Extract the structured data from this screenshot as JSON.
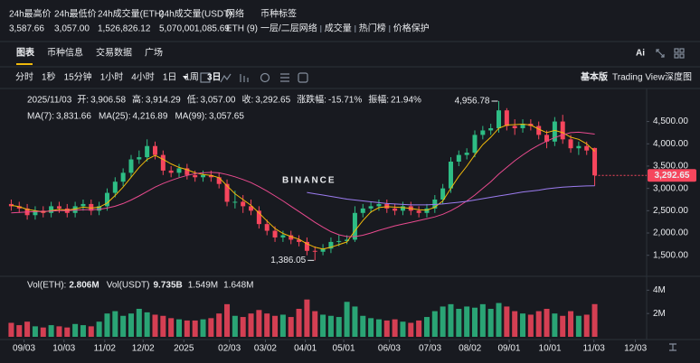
{
  "header": {
    "stats": [
      {
        "label": "24h最高价",
        "value": "3,587.66"
      },
      {
        "label": "24h最低价",
        "value": "3,057.00"
      },
      {
        "label": "24h成交量(ETH)",
        "value": "1,526,826.12"
      },
      {
        "label": "24h成交量(USDT)",
        "value": "5,070,001,085.69"
      },
      {
        "label": "网络",
        "value": "ETH (9)"
      }
    ],
    "tags_label": "币种标签",
    "tags": [
      "一层/二层网络",
      "成交量",
      "热门榜",
      "价格保护"
    ]
  },
  "tabs": [
    "图表",
    "币种信息",
    "交易数据",
    "广场"
  ],
  "tools_label": "Ai",
  "intervals": [
    "分时",
    "1秒",
    "15分钟",
    "1小时",
    "4小时",
    "1日",
    "1周",
    "3日"
  ],
  "views": [
    "基本版",
    "Trading View",
    "深度图"
  ],
  "chart_data": {
    "type": "candlestick",
    "watermark": "BINANCE",
    "info": {
      "date": "2025/11/03",
      "fields": [
        {
          "label": "开:",
          "value": "3,906.58"
        },
        {
          "label": "高:",
          "value": "3,914.29"
        },
        {
          "label": "低:",
          "value": "3,057.00"
        },
        {
          "label": "收:",
          "value": "3,292.65"
        },
        {
          "label": "涨跌幅:",
          "value": "-15.71%"
        },
        {
          "label": "振幅:",
          "value": "21.94%"
        }
      ]
    },
    "up_color": "#2ebd85",
    "down_color": "#f6465d",
    "open": [
      2650,
      2600,
      2550,
      2400,
      2500,
      2450,
      2600,
      2550,
      2450,
      2600,
      2650,
      2500,
      2600,
      2900,
      3150,
      3350,
      3650,
      3700,
      3950,
      3750,
      3400,
      3350,
      3450,
      3300,
      3250,
      3300,
      3250,
      3100,
      2700,
      2700,
      2600,
      2500,
      2200,
      2050,
      1900,
      1950,
      1850,
      1800,
      1600,
      1580,
      1650,
      1800,
      1820,
      1850,
      2450,
      2550,
      2600,
      2650,
      2550,
      2500,
      2600,
      2500,
      2450,
      2550,
      2750,
      3000,
      3600,
      3750,
      3800,
      4200,
      4300,
      4350,
      4750,
      4400,
      4350,
      4450,
      4400,
      4200,
      4050,
      4500,
      4100,
      3900,
      3950,
      3906.58
    ],
    "high": [
      2750,
      2700,
      2650,
      2600,
      2600,
      2700,
      2700,
      2650,
      2700,
      2750,
      2750,
      2700,
      3000,
      3250,
      3450,
      3750,
      3850,
      4100,
      4050,
      3850,
      3500,
      3550,
      3550,
      3400,
      3400,
      3400,
      3350,
      3200,
      2950,
      2850,
      2750,
      2600,
      2300,
      2150,
      2050,
      2050,
      1950,
      1900,
      1700,
      1750,
      1900,
      1950,
      1950,
      2600,
      2650,
      2700,
      2750,
      2750,
      2650,
      2700,
      2700,
      2600,
      2650,
      2850,
      3100,
      3700,
      3850,
      3900,
      4300,
      4400,
      4450,
      4956.78,
      4800,
      4550,
      4550,
      4550,
      4500,
      4300,
      4600,
      4650,
      4200,
      4050,
      4050,
      3914.29
    ],
    "low": [
      2500,
      2450,
      2300,
      2300,
      2350,
      2350,
      2450,
      2350,
      2350,
      2500,
      2400,
      2400,
      2500,
      2800,
      3050,
      3250,
      3550,
      3600,
      3650,
      3300,
      3250,
      3250,
      3200,
      3150,
      3150,
      3150,
      3000,
      2600,
      2550,
      2450,
      2400,
      2100,
      1950,
      1800,
      1800,
      1750,
      1700,
      1500,
      1386.05,
      1500,
      1550,
      1700,
      1750,
      1800,
      2350,
      2450,
      2500,
      2450,
      2400,
      2400,
      2400,
      2350,
      2350,
      2450,
      2650,
      2900,
      3500,
      3650,
      3700,
      4100,
      4200,
      4250,
      4300,
      4200,
      4250,
      4300,
      4100,
      3900,
      3950,
      4000,
      3800,
      3750,
      3750,
      3057
    ],
    "close": [
      2600,
      2550,
      2400,
      2500,
      2450,
      2600,
      2550,
      2450,
      2600,
      2650,
      2500,
      2600,
      2900,
      3150,
      3350,
      3650,
      3700,
      3950,
      3750,
      3400,
      3350,
      3450,
      3300,
      3250,
      3300,
      3250,
      3100,
      2700,
      2700,
      2600,
      2500,
      2200,
      2050,
      1900,
      1950,
      1850,
      1800,
      1600,
      1580,
      1650,
      1800,
      1820,
      1850,
      2450,
      2550,
      2600,
      2650,
      2550,
      2500,
      2600,
      2500,
      2450,
      2550,
      2750,
      3000,
      3600,
      3750,
      3800,
      4200,
      4300,
      4350,
      4750,
      4400,
      4350,
      4450,
      4400,
      4200,
      4050,
      4500,
      4100,
      3900,
      3950,
      3850,
      3292.65
    ],
    "annotations": {
      "max": "4,956.78",
      "min": "1,386.05",
      "last": "3,292.65"
    },
    "moving_averages": [
      {
        "name": "MA(7):",
        "value_label": "3,831.66",
        "color": "#f0b90b",
        "values": [
          2620,
          2590,
          2530,
          2500,
          2470,
          2500,
          2530,
          2510,
          2540,
          2580,
          2560,
          2580,
          2670,
          2840,
          3030,
          3250,
          3470,
          3650,
          3740,
          3650,
          3550,
          3470,
          3420,
          3350,
          3310,
          3290,
          3240,
          3060,
          2880,
          2750,
          2620,
          2450,
          2270,
          2100,
          1990,
          1920,
          1860,
          1760,
          1680,
          1640,
          1680,
          1740,
          1800,
          2050,
          2280,
          2470,
          2570,
          2590,
          2580,
          2570,
          2550,
          2520,
          2510,
          2580,
          2720,
          3000,
          3270,
          3500,
          3750,
          3980,
          4150,
          4350,
          4420,
          4430,
          4440,
          4420,
          4330,
          4250,
          4300,
          4250,
          4150,
          4100,
          4000,
          3831.66
        ]
      },
      {
        "name": "MA(25):",
        "value_label": "4,216.89",
        "color": "#e84a8e",
        "values": [
          2450,
          2460,
          2470,
          2480,
          2480,
          2490,
          2500,
          2500,
          2510,
          2520,
          2520,
          2530,
          2560,
          2600,
          2660,
          2740,
          2830,
          2930,
          3030,
          3110,
          3180,
          3240,
          3290,
          3330,
          3350,
          3360,
          3350,
          3310,
          3260,
          3200,
          3130,
          3040,
          2940,
          2830,
          2720,
          2600,
          2480,
          2360,
          2240,
          2130,
          2030,
          1960,
          1920,
          1920,
          1950,
          2000,
          2060,
          2110,
          2160,
          2200,
          2240,
          2280,
          2320,
          2360,
          2420,
          2500,
          2600,
          2720,
          2850,
          3000,
          3150,
          3320,
          3470,
          3620,
          3750,
          3870,
          3970,
          4060,
          4140,
          4200,
          4250,
          4260,
          4240,
          4216.89
        ]
      },
      {
        "name": "MA(99):",
        "value_label": "3,057.65",
        "color": "#9c7cf0",
        "values": [
          null,
          null,
          null,
          null,
          null,
          null,
          null,
          null,
          null,
          null,
          null,
          null,
          null,
          null,
          null,
          null,
          null,
          null,
          null,
          null,
          null,
          null,
          null,
          null,
          null,
          null,
          null,
          null,
          null,
          null,
          null,
          null,
          null,
          null,
          null,
          null,
          null,
          2910,
          2880,
          2850,
          2820,
          2790,
          2760,
          2740,
          2720,
          2700,
          2680,
          2660,
          2650,
          2640,
          2630,
          2630,
          2630,
          2640,
          2650,
          2670,
          2690,
          2710,
          2740,
          2770,
          2800,
          2830,
          2860,
          2890,
          2920,
          2940,
          2960,
          2990,
          3010,
          3030,
          3040,
          3050,
          3055,
          3057.65
        ]
      }
    ],
    "xlim": [
      -0.5,
      79.5
    ],
    "xticks": [
      {
        "value": 1.6,
        "label": "09/03"
      },
      {
        "value": 6.6,
        "label": "10/03"
      },
      {
        "value": 11.7,
        "label": "11/02"
      },
      {
        "value": 16.5,
        "label": "12/02"
      },
      {
        "value": 21.6,
        "label": "2025"
      },
      {
        "value": 27.3,
        "label": "02/03"
      },
      {
        "value": 31.8,
        "label": "03/02"
      },
      {
        "value": 36.8,
        "label": "04/01"
      },
      {
        "value": 41.6,
        "label": "05/01"
      },
      {
        "value": 47.3,
        "label": "06/03"
      },
      {
        "value": 52.4,
        "label": "07/03"
      },
      {
        "value": 57.4,
        "label": "08/02"
      },
      {
        "value": 62.3,
        "label": "09/01"
      },
      {
        "value": 67.4,
        "label": "10/01"
      },
      {
        "value": 72.9,
        "label": "11/03"
      },
      {
        "value": 78.1,
        "label": "12/03"
      }
    ],
    "ylim": [
      1150,
      5200
    ],
    "yticks": [
      {
        "value": 1500,
        "label": "1,500.00"
      },
      {
        "value": 2000,
        "label": "2,000.00"
      },
      {
        "value": 2500,
        "label": "2,500.00"
      },
      {
        "value": 3000,
        "label": "3,000.00"
      },
      {
        "value": 3500,
        "label": "3,500.00"
      },
      {
        "value": 4000,
        "label": "4,000.00"
      },
      {
        "value": 4500,
        "label": "4,500.00"
      }
    ],
    "volume": {
      "name": "Vol(ETH):",
      "value_label": "2.806M",
      "ylim": [
        0,
        4.88
      ],
      "yticks": [
        {
          "value": 2,
          "label": "2M"
        },
        {
          "value": 4,
          "label": "4M"
        }
      ],
      "values": [
        1.2,
        1.0,
        1.3,
        0.9,
        0.8,
        1.0,
        0.9,
        0.8,
        1.1,
        1.0,
        0.9,
        1.3,
        2.0,
        2.2,
        1.8,
        2.0,
        2.4,
        2.1,
        1.9,
        1.8,
        1.6,
        1.5,
        1.4,
        1.4,
        1.5,
        1.6,
        2.0,
        2.8,
        1.8,
        1.7,
        2.0,
        2.3,
        2.0,
        1.8,
        1.9,
        1.7,
        2.4,
        3.2,
        2.2,
        1.9,
        1.8,
        1.7,
        3.0,
        2.6,
        1.8,
        1.6,
        1.5,
        1.4,
        1.5,
        1.3,
        1.2,
        1.4,
        1.7,
        2.2,
        2.6,
        2.8,
        2.4,
        2.6,
        2.5,
        2.8,
        2.4,
        2.9,
        2.6,
        2.2,
        2.0,
        1.9,
        2.2,
        2.4,
        2.0,
        1.8,
        2.2,
        1.8,
        1.9,
        2.806
      ],
      "extra": [
        {
          "name": "Vol(USDT)",
          "value_label": "9.735B",
          "color": "#eaecef"
        },
        {
          "value_label": "1.549M",
          "color": "#3db4e6"
        },
        {
          "value_label": "1.648M",
          "color": "#e84a8e"
        }
      ]
    }
  }
}
